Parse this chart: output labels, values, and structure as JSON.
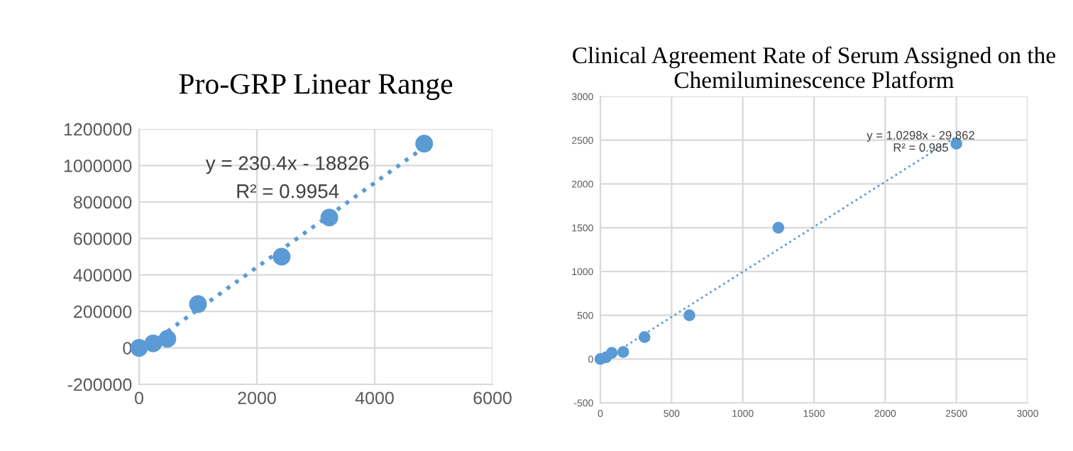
{
  "chart_data": [
    {
      "type": "scatter",
      "title": "Pro-GRP Linear Range",
      "x": [
        0,
        240,
        480,
        1000,
        2420,
        3230,
        4840
      ],
      "series": [
        {
          "color": "#5b9bd5",
          "marker": "circle",
          "values": [
            0,
            25000,
            50000,
            240000,
            500000,
            715000,
            1120000
          ]
        },
        {
          "type": "line",
          "color": "#5b9bd5",
          "line_style": "dotted",
          "marker": "none",
          "x": [
            480,
            4840
          ],
          "values": [
            90000,
            1100000
          ]
        }
      ],
      "annotations": [
        "y = 230.4x - 18826",
        "R² = 0.9954"
      ],
      "xlim": [
        0,
        6000
      ],
      "xticks": [
        0,
        2000,
        4000,
        6000
      ],
      "ylim": [
        -200000,
        1200000
      ],
      "yticks": [
        -200000,
        0,
        200000,
        400000,
        600000,
        800000,
        1000000,
        1200000
      ],
      "grid": true,
      "legend": false
    },
    {
      "type": "scatter",
      "title": "Clinical Agreement Rate of Serum Assigned on the Chemiluminescence Platform",
      "x": [
        0,
        40,
        80,
        160,
        310,
        625,
        1250,
        2500
      ],
      "series": [
        {
          "color": "#5b9bd5",
          "marker": "circle",
          "values": [
            0,
            20,
            70,
            80,
            250,
            500,
            1500,
            2460
          ]
        },
        {
          "type": "line",
          "color": "#5b9bd5",
          "line_style": "dotted",
          "marker": "none",
          "x": [
            150,
            2500
          ],
          "values": [
            120,
            2540
          ]
        }
      ],
      "annotations": [
        "y = 1.0298x - 29.862",
        "R² = 0.985"
      ],
      "xlim": [
        0,
        3000
      ],
      "xticks": [
        0,
        500,
        1000,
        1500,
        2000,
        2500,
        3000
      ],
      "ylim": [
        -500,
        3000
      ],
      "yticks": [
        -500,
        0,
        500,
        1000,
        1500,
        2000,
        2500,
        3000
      ],
      "grid": true,
      "legend": false
    }
  ]
}
